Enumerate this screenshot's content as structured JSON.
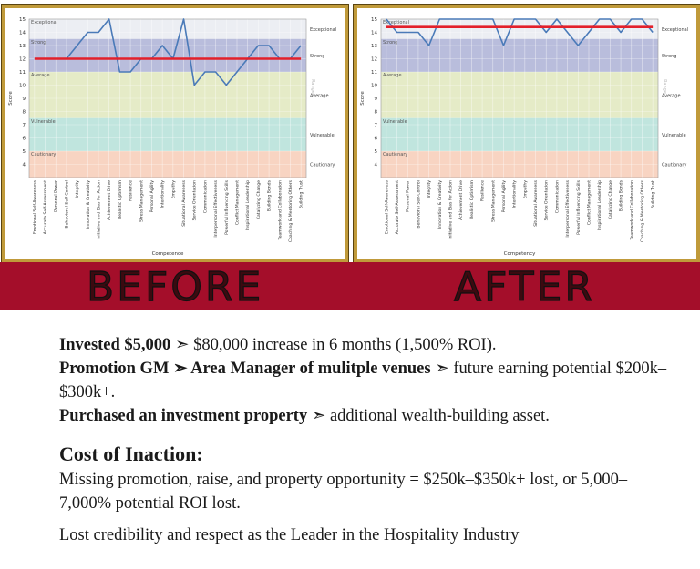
{
  "chart_data": [
    {
      "type": "line",
      "y_label": "Score",
      "x_label": "Competence",
      "y2_label": "Range",
      "categories": [
        "Emotional Self-Awareness",
        "Accurate Self-Assessment",
        "Personal Power",
        "Behavioral Self-Control",
        "Integrity",
        "Innovation & Creativity",
        "Initiative and Bias for Action",
        "Achievement Drive",
        "Realistic Optimism",
        "Resilience",
        "Stress Management",
        "Personal Agility",
        "Intentionality",
        "Empathy",
        "Situational Awareness",
        "Service Orientation",
        "Communication",
        "Interpersonal Effectiveness",
        "Powerful Influencing Skills",
        "Conflict Management",
        "Inspirational Leadership",
        "Catalyzing Change",
        "Building Bonds",
        "Teamwork and Collaboration",
        "Coaching & Mentoring Others",
        "Building Trust"
      ],
      "series": [
        {
          "color": "#4a7ab8",
          "values": [
            12,
            12,
            12,
            12,
            13,
            14,
            14,
            15,
            11,
            11,
            12,
            12,
            13,
            12,
            15,
            10,
            11,
            11,
            10,
            11,
            12,
            13,
            13,
            12,
            12,
            13
          ]
        }
      ],
      "reference_line": 12,
      "reference_color": "#e3202b",
      "bands": [
        {
          "name": "Exceptional",
          "from": 13.5,
          "to": 15,
          "color": "#eceef3"
        },
        {
          "name": "Strong",
          "from": 11,
          "to": 13.5,
          "color": "#b9bddc"
        },
        {
          "name": "Average",
          "from": 7.5,
          "to": 11,
          "color": "#e5ebc7"
        },
        {
          "name": "Vulnerable",
          "from": 5,
          "to": 7.5,
          "color": "#c0e5de"
        },
        {
          "name": "Cautionary",
          "from": 3,
          "to": 5,
          "color": "#f8d4c2"
        }
      ],
      "ylim": [
        3,
        15
      ],
      "yticks": [
        4,
        5,
        6,
        7,
        8,
        9,
        10,
        11,
        12,
        13,
        14,
        15
      ],
      "grid": true
    },
    {
      "type": "line",
      "y_label": "Score",
      "x_label": "Competency",
      "y2_label": "Range",
      "categories": [
        "Emotional Self-Awareness",
        "Accurate Self-Assessment",
        "Personal Power",
        "Behavioral Self-Control",
        "Integrity",
        "Innovation & Creativity",
        "Initiative and Bias for Action",
        "Achievement Drive",
        "Realistic Optimism",
        "Resilience",
        "Stress Management",
        "Personal Agility",
        "Intentionality",
        "Empathy",
        "Situational Awareness",
        "Service Orientation",
        "Communication",
        "Interpersonal Effectiveness",
        "Powerful Influencing Skills",
        "Conflict Management",
        "Inspirational Leadership",
        "Catalyzing Change",
        "Building Bonds",
        "Teamwork and Collaboration",
        "Coaching & Mentoring Others",
        "Building Trust"
      ],
      "series": [
        {
          "color": "#4a7ab8",
          "values": [
            15,
            14,
            14,
            14,
            13,
            15,
            15,
            15,
            15,
            15,
            15,
            13,
            15,
            15,
            15,
            14,
            15,
            14,
            13,
            14,
            15,
            15,
            14,
            15,
            15,
            14
          ]
        }
      ],
      "reference_line": 14.4,
      "reference_color": "#e3202b",
      "bands": [
        {
          "name": "Exceptional",
          "from": 13.5,
          "to": 15,
          "color": "#eceef3"
        },
        {
          "name": "Strong",
          "from": 11,
          "to": 13.5,
          "color": "#b9bddc"
        },
        {
          "name": "Average",
          "from": 7.5,
          "to": 11,
          "color": "#e5ebc7"
        },
        {
          "name": "Vulnerable",
          "from": 5,
          "to": 7.5,
          "color": "#c0e5de"
        },
        {
          "name": "Cautionary",
          "from": 3,
          "to": 5,
          "color": "#f8d4c2"
        }
      ],
      "ylim": [
        3,
        15
      ],
      "yticks": [
        4,
        5,
        6,
        7,
        8,
        9,
        10,
        11,
        12,
        13,
        14,
        15
      ],
      "grid": true
    }
  ],
  "banner": {
    "left": "BEFORE",
    "right": "AFTER"
  },
  "results": [
    [
      {
        "text": "Invested $5,000",
        "bold": true
      },
      {
        "text": " ➣ $80,000 increase in 6 months (1,500% ROI).",
        "bold": false
      }
    ],
    [
      {
        "text": "Promotion GM ➣ Area Manager of mulitple venues",
        "bold": true
      },
      {
        "text": " ➣ future earning potential $200k–$300k+.",
        "bold": false
      }
    ],
    [
      {
        "text": "Purchased an investment property",
        "bold": true
      },
      {
        "text": " ➣ additional wealth-building asset.",
        "bold": false
      }
    ]
  ],
  "cost": {
    "heading": "Cost of Inaction:",
    "paragraphs": [
      "Missing promotion, raise, and property opportunity = $250k–$350k+ lost, or 5,000–7,000% potential ROI lost.",
      "Lost credibility and respect as the Leader in the Hospitality Industry"
    ]
  }
}
